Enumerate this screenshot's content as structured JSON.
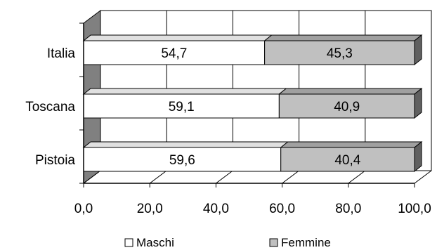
{
  "chart_data": {
    "type": "bar",
    "orientation": "horizontal",
    "stacked": true,
    "categories": [
      "Italia",
      "Toscana",
      "Pistoia"
    ],
    "series": [
      {
        "name": "Maschi",
        "values": [
          54.7,
          59.1,
          59.6
        ],
        "labels": [
          "54,7",
          "59,1",
          "59,6"
        ],
        "color": "#ffffff"
      },
      {
        "name": "Femmine",
        "values": [
          45.3,
          40.9,
          40.4
        ],
        "labels": [
          "45,3",
          "40,9",
          "40,4"
        ],
        "color": "#c0c0c0"
      }
    ],
    "xlim": [
      0,
      100
    ],
    "x_ticks": [
      0,
      20,
      40,
      60,
      80,
      100
    ],
    "x_tick_labels": [
      "0,0",
      "20,0",
      "40,0",
      "60,0",
      "80,0",
      "100,0"
    ],
    "grid": true,
    "legend_position": "bottom",
    "wall_color": "#808080"
  }
}
